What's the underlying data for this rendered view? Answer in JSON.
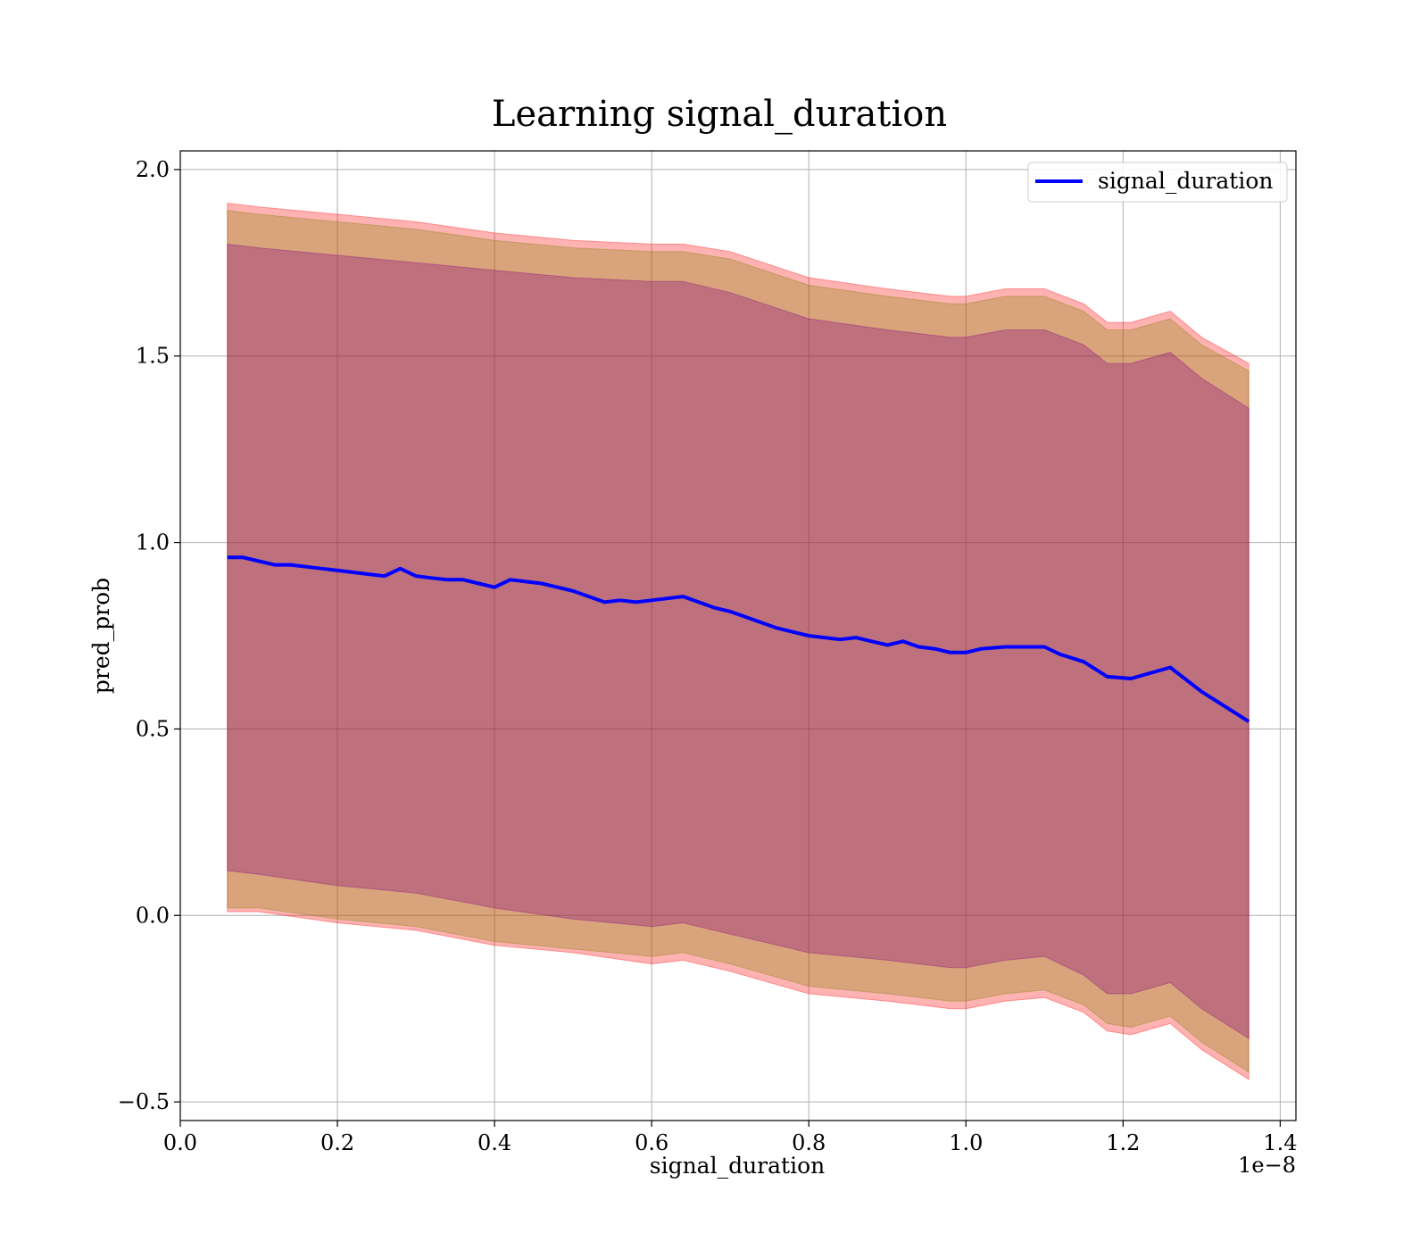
{
  "chart_data": {
    "type": "line",
    "title": "Learning signal_duration",
    "xlabel": "signal_duration",
    "ylabel": "pred_prob",
    "x_offset_text": "1e−8",
    "xlim": [
      0.0,
      1.42
    ],
    "ylim": [
      -0.55,
      2.05
    ],
    "x_ticks": [
      0.0,
      0.2,
      0.4,
      0.6,
      0.8,
      1.0,
      1.2,
      1.4
    ],
    "x_tick_labels": [
      "0.0",
      "0.2",
      "0.4",
      "0.6",
      "0.8",
      "1.0",
      "1.2",
      "1.4"
    ],
    "y_ticks": [
      -0.5,
      0.0,
      0.5,
      1.0,
      1.5,
      2.0
    ],
    "y_tick_labels": [
      "−0.5",
      "0.0",
      "0.5",
      "1.0",
      "1.5",
      "2.0"
    ],
    "grid": true,
    "legend_position": "top-right",
    "series": [
      {
        "name": "signal_duration",
        "color": "#0000ff",
        "x": [
          0.06,
          0.08,
          0.1,
          0.12,
          0.14,
          0.16,
          0.18,
          0.2,
          0.22,
          0.24,
          0.26,
          0.28,
          0.3,
          0.32,
          0.34,
          0.36,
          0.38,
          0.4,
          0.42,
          0.44,
          0.46,
          0.48,
          0.5,
          0.52,
          0.54,
          0.56,
          0.58,
          0.6,
          0.62,
          0.64,
          0.66,
          0.68,
          0.7,
          0.72,
          0.74,
          0.76,
          0.78,
          0.8,
          0.82,
          0.84,
          0.86,
          0.88,
          0.9,
          0.92,
          0.94,
          0.96,
          0.98,
          1.0,
          1.02,
          1.05,
          1.08,
          1.1,
          1.12,
          1.15,
          1.18,
          1.21,
          1.26,
          1.3,
          1.36
        ],
        "y": [
          0.96,
          0.96,
          0.95,
          0.94,
          0.94,
          0.935,
          0.93,
          0.925,
          0.92,
          0.915,
          0.91,
          0.93,
          0.91,
          0.905,
          0.9,
          0.9,
          0.89,
          0.88,
          0.9,
          0.895,
          0.89,
          0.88,
          0.87,
          0.855,
          0.84,
          0.845,
          0.84,
          0.845,
          0.85,
          0.855,
          0.84,
          0.825,
          0.815,
          0.8,
          0.785,
          0.77,
          0.76,
          0.75,
          0.745,
          0.74,
          0.745,
          0.735,
          0.725,
          0.735,
          0.72,
          0.715,
          0.705,
          0.705,
          0.715,
          0.72,
          0.72,
          0.72,
          0.7,
          0.68,
          0.64,
          0.635,
          0.665,
          0.6,
          0.52
        ]
      }
    ],
    "bands": [
      {
        "color": "#ff0000",
        "opacity": 0.3,
        "x": [
          0.06,
          0.1,
          0.2,
          0.3,
          0.4,
          0.5,
          0.6,
          0.64,
          0.7,
          0.8,
          0.9,
          0.98,
          1.0,
          1.05,
          1.1,
          1.15,
          1.18,
          1.21,
          1.26,
          1.3,
          1.36
        ],
        "lower": [
          0.01,
          0.01,
          -0.02,
          -0.04,
          -0.08,
          -0.1,
          -0.13,
          -0.12,
          -0.15,
          -0.21,
          -0.23,
          -0.25,
          -0.25,
          -0.23,
          -0.22,
          -0.26,
          -0.31,
          -0.32,
          -0.29,
          -0.36,
          -0.44
        ],
        "upper": [
          1.91,
          1.9,
          1.88,
          1.86,
          1.83,
          1.81,
          1.8,
          1.8,
          1.78,
          1.71,
          1.68,
          1.66,
          1.66,
          1.68,
          1.68,
          1.64,
          1.59,
          1.59,
          1.62,
          1.55,
          1.48
        ]
      },
      {
        "color": "#808000",
        "opacity": 0.3,
        "x": [
          0.06,
          0.1,
          0.2,
          0.3,
          0.4,
          0.5,
          0.6,
          0.64,
          0.7,
          0.8,
          0.9,
          0.98,
          1.0,
          1.05,
          1.1,
          1.15,
          1.18,
          1.21,
          1.26,
          1.3,
          1.36
        ],
        "lower": [
          0.02,
          0.02,
          -0.01,
          -0.03,
          -0.07,
          -0.09,
          -0.11,
          -0.1,
          -0.13,
          -0.19,
          -0.21,
          -0.23,
          -0.23,
          -0.21,
          -0.2,
          -0.24,
          -0.29,
          -0.3,
          -0.27,
          -0.34,
          -0.42
        ],
        "upper": [
          1.89,
          1.88,
          1.86,
          1.84,
          1.81,
          1.79,
          1.78,
          1.78,
          1.76,
          1.69,
          1.66,
          1.64,
          1.64,
          1.66,
          1.66,
          1.62,
          1.57,
          1.57,
          1.6,
          1.53,
          1.46
        ]
      },
      {
        "color": "#800080",
        "opacity": 0.3,
        "x": [
          0.06,
          0.1,
          0.2,
          0.3,
          0.4,
          0.5,
          0.6,
          0.64,
          0.7,
          0.8,
          0.9,
          0.98,
          1.0,
          1.05,
          1.1,
          1.15,
          1.18,
          1.21,
          1.26,
          1.3,
          1.36
        ],
        "lower": [
          0.12,
          0.11,
          0.08,
          0.06,
          0.02,
          -0.01,
          -0.03,
          -0.02,
          -0.05,
          -0.1,
          -0.12,
          -0.14,
          -0.14,
          -0.12,
          -0.11,
          -0.16,
          -0.21,
          -0.21,
          -0.18,
          -0.25,
          -0.33
        ],
        "upper": [
          1.8,
          1.79,
          1.77,
          1.75,
          1.73,
          1.71,
          1.7,
          1.7,
          1.67,
          1.6,
          1.57,
          1.55,
          1.55,
          1.57,
          1.57,
          1.53,
          1.48,
          1.48,
          1.51,
          1.44,
          1.36
        ]
      }
    ]
  }
}
